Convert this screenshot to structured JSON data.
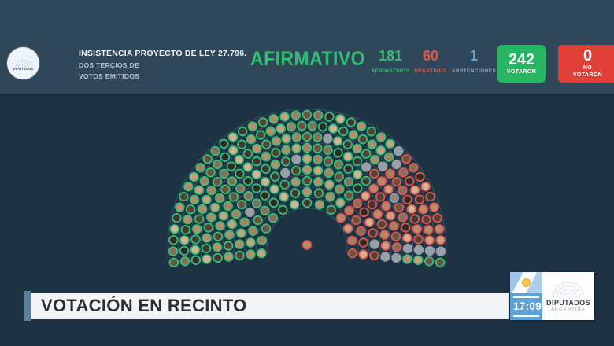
{
  "header": {
    "background": "#30475a",
    "logo": {
      "label": "DIPUTADOS"
    },
    "session": {
      "title": "INSISTENCIA PROYECTO DE LEY 27.796.",
      "line2": "DOS TERCIOS DE",
      "line3": "VOTOS EMITIDOS"
    },
    "result_label": "AFIRMATIVO",
    "result_color": "#2fbf71",
    "counters": [
      {
        "value": "181",
        "label": "AFIRMATIVOS",
        "color": "#2fbf71"
      },
      {
        "value": "60",
        "label": "NEGATIVOS",
        "color": "#e2574c"
      },
      {
        "value": "1",
        "label": "ABSTENCIONES",
        "color": "#68a4dd",
        "label_color": "#8fa5b5"
      }
    ],
    "totals": [
      {
        "value": "242",
        "label": "VOTARON",
        "bg": "#27b561"
      },
      {
        "value": "0",
        "label": "NO VOTARON",
        "bg": "#e04038"
      }
    ]
  },
  "chamber": {
    "background": "#1d3242",
    "total_seats": 257,
    "seat_colors": {
      "G": "#34c173",
      "R": "#e2574c",
      "B": "#68a4dd",
      "Y": "#97a0a6"
    },
    "legend": {
      "G": "afirmativo",
      "R": "negativo",
      "B": "abstencion",
      "Y": "ausente"
    },
    "rows": [
      "GGGGGGGGGRRRR",
      "GGGGGGGGGGGGRRRRR",
      "GGGGYGGGGGGGGGGRRRRYR",
      "GGGGGGGGGGYGGGGGGGRRRRRRY",
      "GGGGGGGGGGGGGYGGGGGGGRRRRRRRY",
      "GGGGGGGGGGGGGGGGGGGGGGYRRRBRRRRYG",
      "GGGGGGGGGGGGGGGGGGGGYGGGGGYRRRRRRRRYG",
      "GGGGGGGGGGGGGGGGGGGGGGGGGGGGGYRRRRRRRRYG",
      "GGGGGGGGGGGGGGGGGGGGGGGGGGGGGYRRRRRRRRRYG"
    ],
    "speaker": "R"
  },
  "footer": {
    "title": "VOTACIÓN EN RECINTO",
    "accent": "#5d7f9c"
  },
  "brand_card": {
    "time": "17:09",
    "name": "DIPUTADOS",
    "country": "ARGENTINA"
  }
}
